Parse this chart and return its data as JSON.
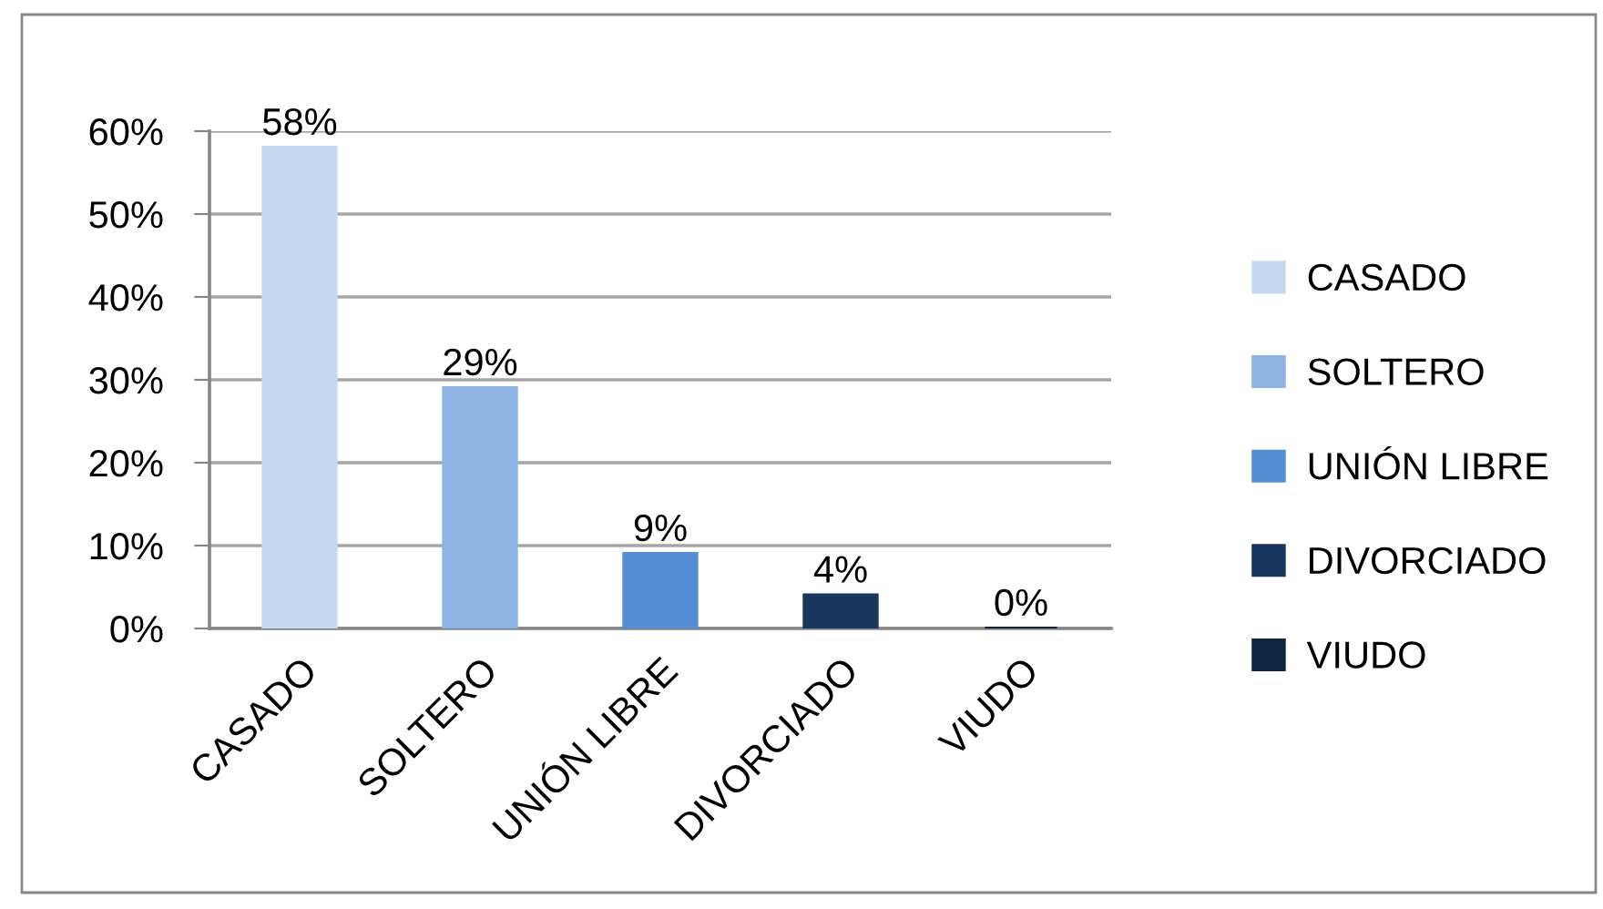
{
  "chart_data": {
    "type": "bar",
    "categories": [
      "CASADO",
      "SOLTERO",
      "UNIÓN LIBRE",
      "DIVORCIADO",
      "VIUDO"
    ],
    "series": [
      {
        "name": "CASADO",
        "color": "#c6d9f0",
        "values": [
          58,
          null,
          null,
          null,
          null
        ],
        "value_labels": [
          "58%",
          null,
          null,
          null,
          null
        ]
      },
      {
        "name": "SOLTERO",
        "color": "#8db3e2",
        "values": [
          null,
          29,
          null,
          null,
          null
        ],
        "value_labels": [
          null,
          "29%",
          null,
          null,
          null
        ]
      },
      {
        "name": "UNIÓN LIBRE",
        "color": "#558ed5",
        "values": [
          null,
          null,
          9,
          null,
          null
        ],
        "value_labels": [
          null,
          null,
          "9%",
          null,
          null
        ]
      },
      {
        "name": "DIVORCIADO",
        "color": "#17375e",
        "values": [
          null,
          null,
          null,
          4,
          null
        ],
        "value_labels": [
          null,
          null,
          null,
          "4%",
          null
        ]
      },
      {
        "name": "VIUDO",
        "color": "#0f243e",
        "values": [
          null,
          null,
          null,
          null,
          0
        ],
        "value_labels": [
          null,
          null,
          null,
          null,
          "0%"
        ]
      }
    ],
    "ylim": [
      0,
      60
    ],
    "yticks": [
      {
        "value": 0,
        "label": "0%"
      },
      {
        "value": 10,
        "label": "10%"
      },
      {
        "value": 20,
        "label": "20%"
      },
      {
        "value": 30,
        "label": "30%"
      },
      {
        "value": 40,
        "label": "40%"
      },
      {
        "value": 50,
        "label": "50%"
      },
      {
        "value": 60,
        "label": "60%"
      }
    ],
    "grid": "y",
    "legend": "right"
  }
}
